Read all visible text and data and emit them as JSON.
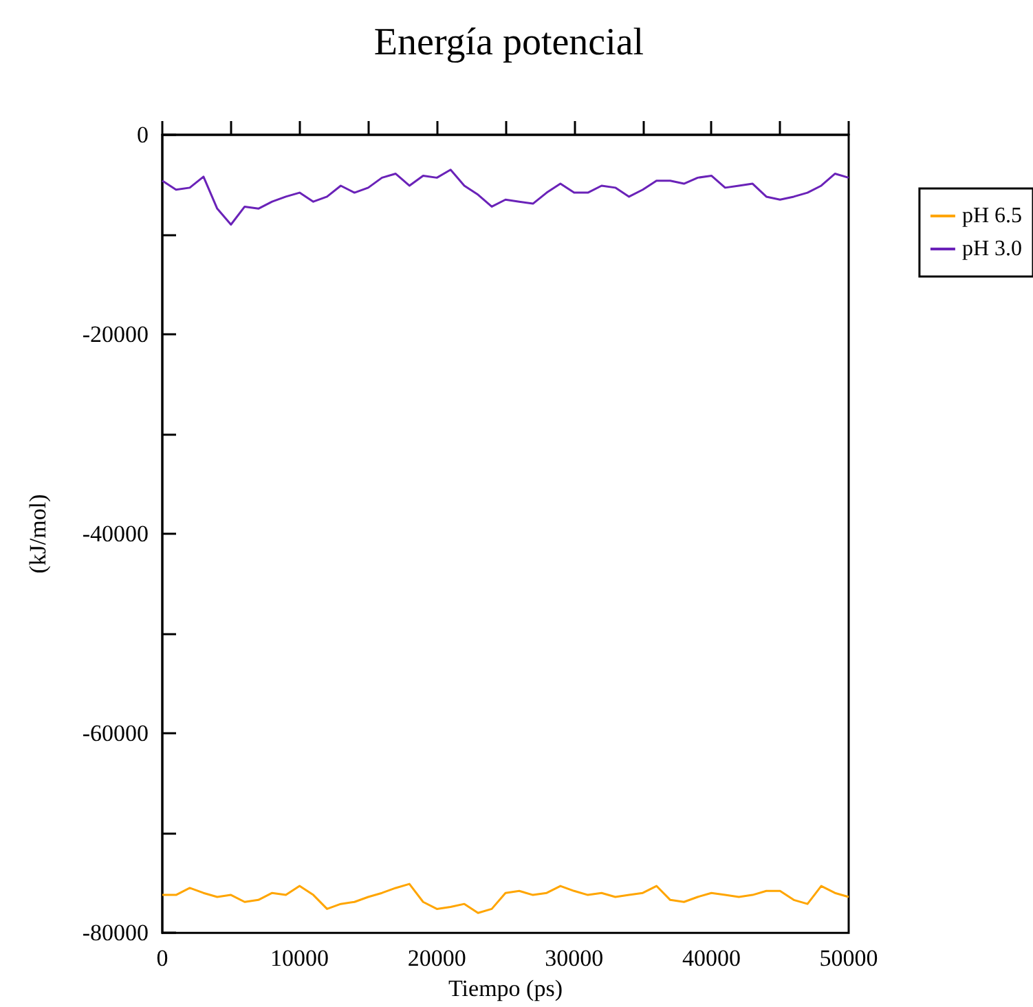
{
  "chart_data": {
    "type": "line",
    "title": "Energía potencial",
    "xlabel": "Tiempo (ps)",
    "ylabel": "(kJ/mol)",
    "x": [
      0,
      1000,
      2000,
      3000,
      4000,
      5000,
      6000,
      7000,
      8000,
      9000,
      10000,
      11000,
      12000,
      13000,
      14000,
      15000,
      16000,
      17000,
      18000,
      19000,
      20000,
      21000,
      22000,
      23000,
      24000,
      25000,
      26000,
      27000,
      28000,
      29000,
      30000,
      31000,
      32000,
      33000,
      34000,
      35000,
      36000,
      37000,
      38000,
      39000,
      40000,
      41000,
      42000,
      43000,
      44000,
      45000,
      46000,
      47000,
      48000,
      49000,
      50000
    ],
    "series": [
      {
        "name": "pH 6.5",
        "color": "#ffa500",
        "values": [
          -76200,
          -76200,
          -75500,
          -76000,
          -76400,
          -76200,
          -76900,
          -76700,
          -76000,
          -76200,
          -75300,
          -76200,
          -77600,
          -77100,
          -76900,
          -76400,
          -76000,
          -75500,
          -75100,
          -76900,
          -77600,
          -77400,
          -77100,
          -78000,
          -77600,
          -76000,
          -75800,
          -76200,
          -76000,
          -75300,
          -75800,
          -76200,
          -76000,
          -76400,
          -76200,
          -76000,
          -75300,
          -76700,
          -76900,
          -76400,
          -76000,
          -76200,
          -76400,
          -76200,
          -75800,
          -75800,
          -76700,
          -77100,
          -75300,
          -76000,
          -76400
        ]
      },
      {
        "name": "pH 3.0",
        "color": "#6a22b8",
        "values": [
          -4600,
          -5500,
          -5300,
          -4200,
          -7400,
          -9000,
          -7200,
          -7400,
          -6700,
          -6200,
          -5800,
          -6700,
          -6200,
          -5100,
          -5800,
          -5300,
          -4300,
          -3900,
          -5100,
          -4100,
          -4300,
          -3500,
          -5100,
          -6000,
          -7200,
          -6500,
          -6700,
          -6900,
          -5800,
          -4900,
          -5800,
          -5800,
          -5100,
          -5300,
          -6200,
          -5500,
          -4600,
          -4600,
          -4900,
          -4300,
          -4100,
          -5300,
          -5100,
          -4900,
          -6200,
          -6500,
          -6200,
          -5800,
          -5100,
          -3900,
          -4300
        ]
      }
    ],
    "xlim": [
      0,
      50000
    ],
    "xticks": [
      0,
      {
        "value": 5000,
        "label": null
      },
      10000,
      {
        "value": 15000,
        "label": null
      },
      20000,
      {
        "value": 25000,
        "label": null
      },
      30000,
      {
        "value": 35000,
        "label": null
      },
      40000,
      {
        "value": 45000,
        "label": null
      },
      50000
    ],
    "ylim": [
      -80000,
      0
    ],
    "yticks": [
      -80000,
      {
        "value": -70000,
        "label": null
      },
      -60000,
      {
        "value": -50000,
        "label": null
      },
      -40000,
      {
        "value": -30000,
        "label": null
      },
      -20000,
      {
        "value": -10000,
        "label": null
      },
      0
    ],
    "grid": false,
    "legend": "right",
    "marker": "none",
    "line_style": "solid"
  }
}
